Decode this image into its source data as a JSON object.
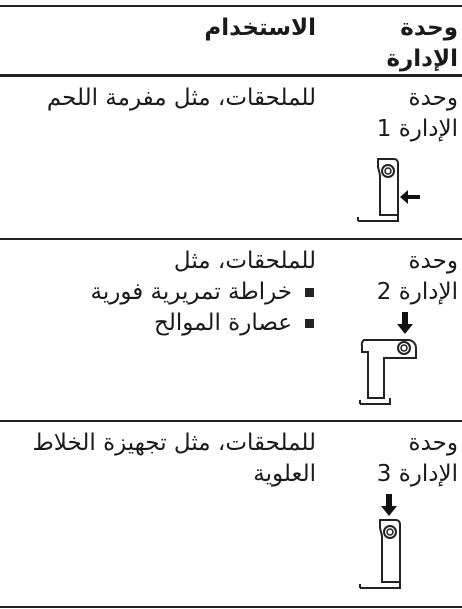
{
  "header": {
    "unit": "وحدة الإدارة",
    "use": "الاستخدام"
  },
  "rows": [
    {
      "unit": "وحدة الإدارة 1",
      "use": "للملحقات، مثل مفرمة اللحم"
    },
    {
      "unit": "وحدة الإدارة 2",
      "use": "للملحقات، مثل",
      "bullets": [
        "خراطة تمريرية فورية",
        "عصارة الموالح"
      ]
    },
    {
      "unit": "وحدة الإدارة 3",
      "use": "للملحقات، مثل تجهيزة الخلاط العلوية"
    }
  ]
}
